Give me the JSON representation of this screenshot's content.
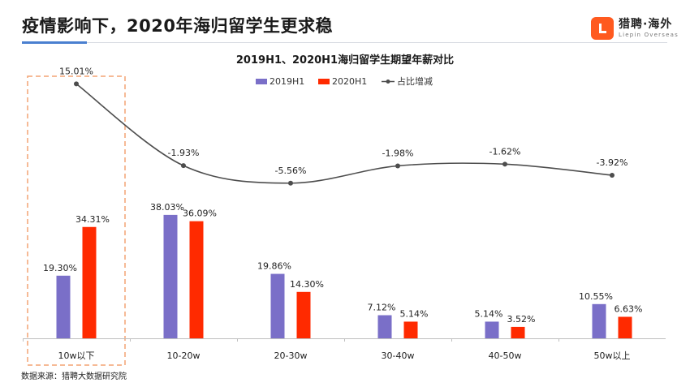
{
  "header": {
    "title": "疫情影响下，2020年海归留学生更求稳",
    "logo_main": "猎聘·海外",
    "logo_sub": "Liepin Overseas"
  },
  "footer": {
    "source": "数据来源：猎聘大数据研究院"
  },
  "colors": {
    "s2019": "#7a6fc8",
    "s2020": "#ff2a00",
    "line": "#4d4d4d",
    "highlight_box": "#f4a373",
    "logo": "#ff5a1f"
  },
  "chart_data": {
    "type": "bar",
    "title": "2019H1、2020H1海归留学生期望年薪对比",
    "categories": [
      "10w以下",
      "10-20w",
      "20-30w",
      "30-40w",
      "40-50w",
      "50w以上"
    ],
    "series": [
      {
        "name": "2019H1",
        "values": [
          19.3,
          38.03,
          19.86,
          7.12,
          5.14,
          10.55
        ],
        "labels": [
          "19.30%",
          "38.03%",
          "19.86%",
          "7.12%",
          "5.14%",
          "10.55%"
        ]
      },
      {
        "name": "2020H1",
        "values": [
          34.31,
          36.09,
          14.3,
          5.14,
          3.52,
          6.63
        ],
        "labels": [
          "34.31%",
          "36.09%",
          "14.30%",
          "5.14%",
          "3.52%",
          "6.63%"
        ]
      }
    ],
    "line_series": {
      "name": "占比增减",
      "values": [
        15.01,
        -1.93,
        -5.56,
        -1.98,
        -1.62,
        -3.92
      ],
      "labels": [
        "15.01%",
        "-1.93%",
        "-5.56%",
        "-1.98%",
        "-1.62%",
        "-3.92%"
      ]
    },
    "highlight_category": "10w以下",
    "legend_position": "top-center",
    "grid": false
  }
}
